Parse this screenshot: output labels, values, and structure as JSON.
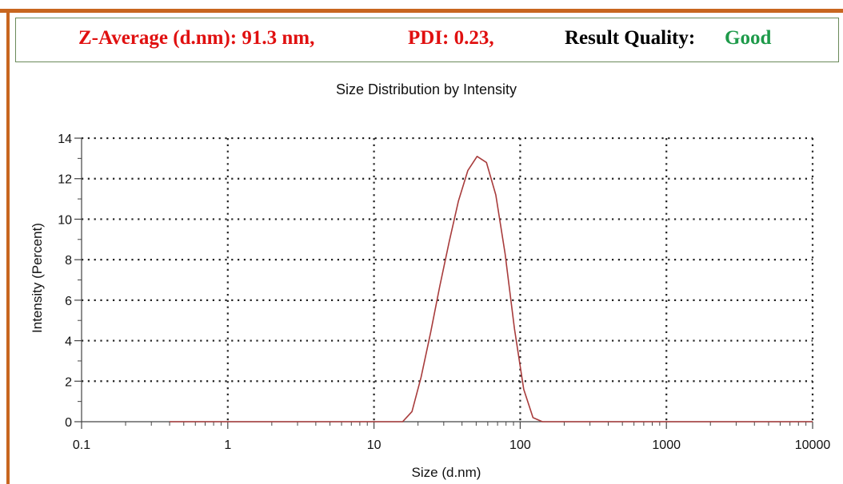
{
  "header": {
    "z_average": "Z-Average (d.nm):  91.3 nm,",
    "pdi": "PDI: 0.23,",
    "result_quality_label": "Result Quality:",
    "result_quality_value": "Good"
  },
  "colors": {
    "frame": "#c8661f",
    "header_red": "#e01010",
    "header_black": "#000000",
    "good_green": "#1e9a4a",
    "curve": "#a83c3c"
  },
  "chart_data": {
    "type": "line",
    "title": "Size Distribution by Intensity",
    "xlabel": "Size (d.nm)",
    "ylabel": "Intensity (Percent)",
    "x_scale": "log",
    "xlim": [
      0.1,
      10000
    ],
    "ylim": [
      0,
      14
    ],
    "x_ticks": [
      0.1,
      1,
      10,
      100,
      1000,
      10000
    ],
    "x_tick_labels": [
      "0.1",
      "1",
      "10",
      "100",
      "1000",
      "10000"
    ],
    "y_ticks": [
      0,
      2,
      4,
      6,
      8,
      10,
      12,
      14
    ],
    "y_tick_labels": [
      "0",
      "2",
      "4",
      "6",
      "8",
      "10",
      "12",
      "14"
    ],
    "grid": true,
    "series": [
      {
        "x": [
          0.4,
          1,
          5,
          10,
          15.7,
          18.2,
          21.0,
          24.4,
          28.2,
          32.7,
          37.8,
          43.8,
          50.7,
          58.8,
          68.1,
          78.8,
          91.3,
          105.7,
          122.4,
          141.8,
          164.2,
          300,
          1000,
          3000,
          10000
        ],
        "y": [
          0,
          0,
          0,
          0,
          0,
          0.5,
          2.2,
          4.4,
          6.7,
          8.9,
          10.9,
          12.4,
          13.1,
          12.8,
          11.2,
          8.3,
          4.6,
          1.6,
          0.2,
          0,
          0,
          0,
          0,
          0,
          0
        ]
      }
    ]
  }
}
